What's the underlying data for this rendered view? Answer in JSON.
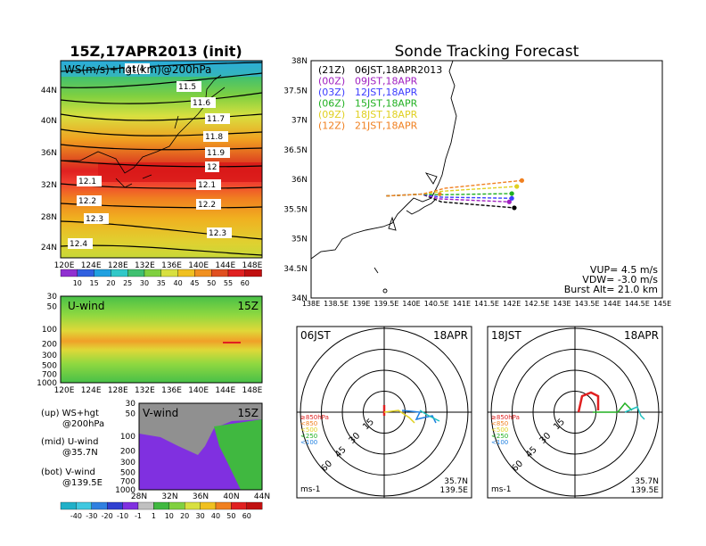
{
  "left": {
    "title": "15Z,17APR2013 (init)",
    "top_label": "WS(m/s)+hgt(km)@200hPa",
    "lat_ticks": [
      "44N",
      "40N",
      "36N",
      "32N",
      "28N",
      "24N"
    ],
    "lon_ticks": [
      "120E",
      "124E",
      "128E",
      "132E",
      "136E",
      "140E",
      "144E",
      "148E"
    ],
    "contour_labels": [
      "11.4",
      "11.5",
      "11.6",
      "11.7",
      "11.8",
      "11.9",
      "12",
      "12.1",
      "12.1",
      "12.2",
      "12.2",
      "12.3",
      "12.3",
      "12.4"
    ],
    "ws_colorbar": [
      "10",
      "15",
      "20",
      "25",
      "30",
      "35",
      "40",
      "45",
      "50",
      "55",
      "60"
    ],
    "uwind_label": "U-wind",
    "uwind_time": "15Z",
    "p_ticks": [
      "30",
      "50",
      "100",
      "200",
      "300",
      "500",
      "700",
      "1000"
    ],
    "vwind_label": "V-wind",
    "vwind_time": "15Z",
    "vwind_lat_ticks": [
      "28N",
      "32N",
      "36N",
      "40N",
      "44N"
    ],
    "legend_lines": [
      "(up) WS+hgt",
      "@200hPa",
      "(mid) U-wind",
      "@35.7N",
      "(bot) V-wind",
      "@139.5E"
    ],
    "wind_colorbar": [
      "-40",
      "-30",
      "-20",
      "-10",
      "-1",
      "1",
      "10",
      "20",
      "30",
      "40",
      "50",
      "60"
    ]
  },
  "right": {
    "title": "Sonde Tracking Forecast",
    "lat_ticks": [
      "38N",
      "37.5N",
      "37N",
      "36.5N",
      "36N",
      "35.5N",
      "35N",
      "34.5N",
      "34N"
    ],
    "lon_ticks": [
      "138E",
      "138.5E",
      "139E",
      "139.5E",
      "140E",
      "140.5E",
      "141E",
      "141.5E",
      "142E",
      "142.5E",
      "143E",
      "143.5E",
      "144E",
      "144.5E",
      "145E"
    ],
    "legend": [
      {
        "code": "(21Z)",
        "time": "06JST,18APR2013",
        "color": "#000000"
      },
      {
        "code": "(00Z)",
        "time": "09JST,18APR",
        "color": "#a020c0"
      },
      {
        "code": "(03Z)",
        "time": "12JST,18APR",
        "color": "#3c3cff"
      },
      {
        "code": "(06Z)",
        "time": "15JST,18APR",
        "color": "#20b020"
      },
      {
        "code": "(09Z)",
        "time": "18JST,18APR",
        "color": "#e0d020"
      },
      {
        "code": "(12Z)",
        "time": "21JST,18APR",
        "color": "#f08020"
      }
    ],
    "params": [
      "VUP= 4.5 m/s",
      "VDW= -3.0 m/s",
      "Burst Alt= 21.0 km"
    ],
    "polar": [
      {
        "time": "06JST",
        "date": "18APR"
      },
      {
        "time": "18JST",
        "date": "18APR"
      }
    ],
    "polar_rings": [
      "15",
      "30",
      "45",
      "60"
    ],
    "polar_levels": [
      "≥850hPa",
      "<850",
      "<500",
      "<250",
      "<100"
    ],
    "polar_unit": "ms-1",
    "polar_loc": [
      "35.7N",
      "139.5E"
    ]
  },
  "chart_data": [
    {
      "type": "heatmap",
      "title": "15Z,17APR2013 (init)",
      "subtitle": "WS(m/s)+hgt(km)@200hPa",
      "xlim": [
        "120E",
        "148E"
      ],
      "ylim": [
        "22N",
        "47N"
      ],
      "contours_km": [
        11.4,
        11.5,
        11.6,
        11.7,
        11.8,
        11.9,
        12,
        12.1,
        12.2,
        12.3,
        12.4
      ]
    },
    {
      "type": "heatmap",
      "title": "U-wind",
      "x": [
        "120E",
        "148E"
      ],
      "ylim_hPa": [
        1000,
        30
      ]
    },
    {
      "type": "heatmap",
      "title": "V-wind",
      "x": [
        "28N",
        "44N"
      ],
      "ylim_hPa": [
        1000,
        30
      ]
    },
    {
      "type": "line",
      "title": "Sonde Tracking Forecast",
      "xlim": [
        138,
        145
      ],
      "ylim": [
        34,
        38
      ],
      "series": [
        {
          "name": "06JST,18APR2013",
          "launch": [
            139.5,
            35.72
          ],
          "end": [
            142.05,
            35.52
          ]
        },
        {
          "name": "09JST,18APR",
          "launch": [
            139.5,
            35.72
          ],
          "end": [
            141.95,
            35.62
          ]
        },
        {
          "name": "12JST,18APR",
          "launch": [
            139.5,
            35.72
          ],
          "end": [
            142.0,
            35.68
          ]
        },
        {
          "name": "15JST,18APR",
          "launch": [
            139.5,
            35.72
          ],
          "end": [
            142.0,
            35.76
          ]
        },
        {
          "name": "18JST,18APR",
          "launch": [
            139.5,
            35.72
          ],
          "end": [
            142.1,
            35.88
          ]
        },
        {
          "name": "21JST,18APR",
          "launch": [
            139.5,
            35.72
          ],
          "end": [
            142.2,
            35.98
          ]
        }
      ]
    }
  ]
}
